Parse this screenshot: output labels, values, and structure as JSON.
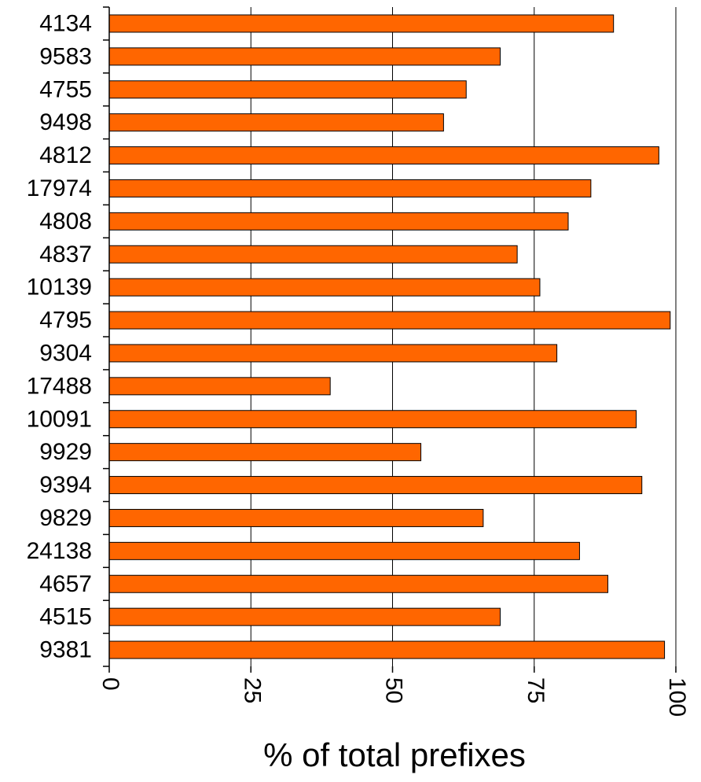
{
  "chart_data": {
    "type": "bar",
    "orientation": "horizontal",
    "categories": [
      "4134",
      "9583",
      "4755",
      "9498",
      "4812",
      "17974",
      "4808",
      "4837",
      "10139",
      "4795",
      "9304",
      "17488",
      "10091",
      "9929",
      "9394",
      "9829",
      "24138",
      "4657",
      "4515",
      "9381"
    ],
    "values": [
      89,
      69,
      63,
      59,
      97,
      85,
      81,
      72,
      76,
      99,
      79,
      39,
      93,
      55,
      94,
      66,
      83,
      88,
      69,
      98
    ],
    "xlabel": "% of total prefixes",
    "ylabel": "",
    "title": "",
    "xlim": [
      0,
      100
    ],
    "xticks": [
      "0",
      "25",
      "50",
      "75",
      "100"
    ],
    "grid": "vertical",
    "legend": "none",
    "colors": {
      "bar": "#ff6600",
      "bar_edge": "#000000",
      "grid": "#000000"
    }
  }
}
